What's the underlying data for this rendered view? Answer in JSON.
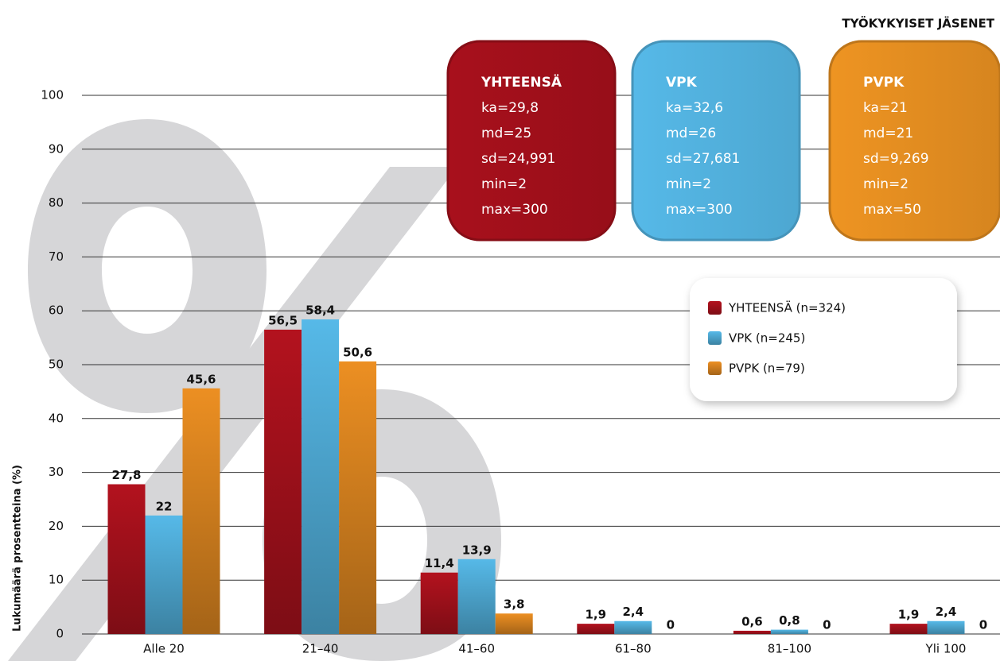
{
  "chart_data": {
    "type": "bar",
    "subtitle": "TYÖKYKYISET JÄSENET",
    "y_label": "Lukumäärä prosentteina (%)",
    "categories": [
      "Alle 20",
      "21–40",
      "41–60",
      "61–80",
      "81–100",
      "Yli 100"
    ],
    "series": [
      {
        "name": "YHTEENSÄ (n=324)",
        "color": "#b3121e",
        "values": [
          27.8,
          56.5,
          11.4,
          1.9,
          0.6,
          1.9
        ],
        "value_labels": [
          "27,8",
          "56,5",
          "11,4",
          "1,9",
          "0,6",
          "1,9"
        ]
      },
      {
        "name": "VPK (n=245)",
        "color": "#56b9e8",
        "values": [
          22,
          58.4,
          13.9,
          2.4,
          0.8,
          2.4
        ],
        "value_labels": [
          "22",
          "58,4",
          "13,9",
          "2,4",
          "0,8",
          "2,4"
        ]
      },
      {
        "name": "PVPK (n=79)",
        "color": "#ec8f22",
        "values": [
          45.6,
          50.6,
          3.8,
          0,
          0,
          0
        ],
        "value_labels": [
          "45,6",
          "50,6",
          "3,8",
          "0",
          "0",
          "0"
        ]
      }
    ],
    "ylim": [
      0,
      100
    ],
    "yticks": [
      0,
      10,
      20,
      30,
      40,
      50,
      60,
      70,
      80,
      90,
      100
    ],
    "grid": true,
    "info_boxes": [
      {
        "title": "YHTEENSÄ",
        "color": "#a8101c",
        "lines": [
          "ka=29,8",
          "md=25",
          "sd=24,991",
          "min=2",
          "max=300"
        ]
      },
      {
        "title": "VPK",
        "color": "#56b9e8",
        "lines": [
          "ka=32,6",
          "md=26",
          "sd=27,681",
          "min=2",
          "max=300"
        ]
      },
      {
        "title": "PVPK",
        "color": "#ee9422",
        "lines": [
          "ka=21",
          "md=21",
          "sd=9,269",
          "min=2",
          "max=50"
        ]
      }
    ]
  }
}
